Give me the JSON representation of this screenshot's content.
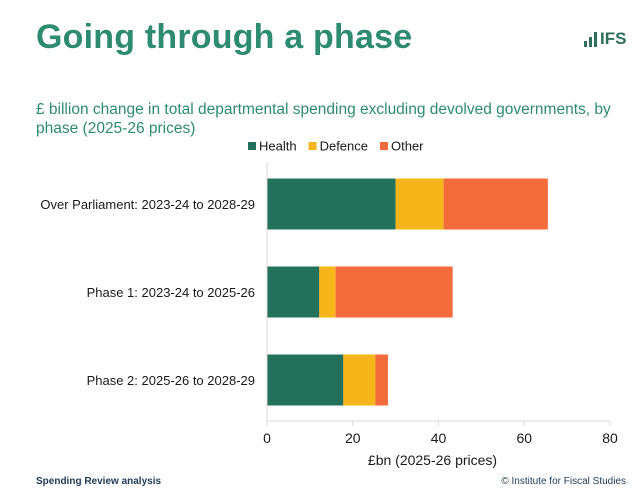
{
  "slide": {
    "title": "Going through a phase",
    "subtitle": "£ billion change in total departmental spending excluding devolved governments, by phase (2025-26 prices)",
    "logo_text": "IFS",
    "footer_left": "Spending Review analysis",
    "footer_right": "© Institute for Fiscal Studies"
  },
  "colors": {
    "Health": "#23705b",
    "Defence": "#f6b519",
    "Other": "#f46b3c",
    "title": "#2e8b70"
  },
  "chart_data": {
    "type": "bar",
    "orientation": "horizontal",
    "stacked": true,
    "categories": [
      "Over Parliament: 2023-24 to 2028-29",
      "Phase 1: 2023-24 to 2025-26",
      "Phase 2: 2025-26 to 2028-29"
    ],
    "series": [
      {
        "name": "Health",
        "values": [
          30.0,
          12.2,
          17.8
        ]
      },
      {
        "name": "Defence",
        "values": [
          11.2,
          3.8,
          7.5
        ]
      },
      {
        "name": "Other",
        "values": [
          24.3,
          27.3,
          2.9
        ]
      }
    ],
    "title": "",
    "xlabel": "£bn (2025-26 prices)",
    "ylabel": "",
    "xlim": [
      0,
      80
    ],
    "xticks": [
      0,
      20,
      40,
      60,
      80
    ],
    "grid": false,
    "legend": "top"
  }
}
